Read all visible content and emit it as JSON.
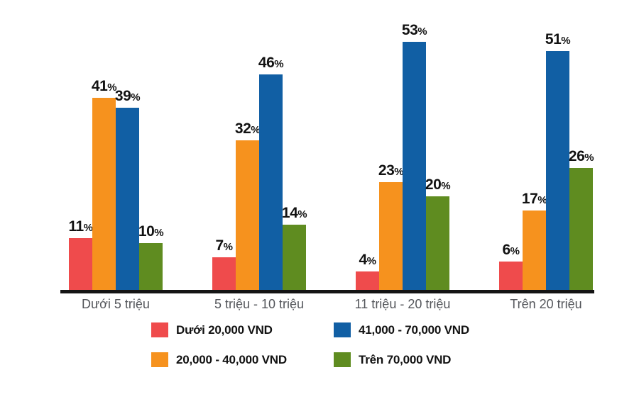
{
  "chart_data": {
    "type": "bar",
    "title": "",
    "xlabel": "",
    "ylabel": "",
    "categories": [
      "Dưới 5 triệu",
      "5 triệu - 10 triệu",
      "11 triệu - 20 triệu",
      "Trên 20 triệu"
    ],
    "series": [
      {
        "name": "Dưới 20,000 VND",
        "color": "#ef4b4c",
        "values": [
          11,
          7,
          4,
          6
        ]
      },
      {
        "name": "20,000 - 40,000 VND",
        "color": "#f6921e",
        "values": [
          41,
          32,
          23,
          17
        ]
      },
      {
        "name": "41,000 - 70,000 VND",
        "color": "#115fa4",
        "values": [
          39,
          46,
          53,
          51
        ]
      },
      {
        "name": "Trên 70,000 VND",
        "color": "#5f8c20",
        "values": [
          10,
          14,
          20,
          26
        ]
      }
    ],
    "value_suffix": "%",
    "value_labels_shown": true,
    "ylim": [
      0,
      57
    ],
    "grid": false,
    "y_axis_shown": false,
    "legend_position": "bottom-center",
    "legend_columns": 2
  },
  "styles": {
    "background": "#ffffff",
    "axis_color": "#141414",
    "value_label_color": "#121212",
    "category_label_color": "#54565b",
    "legend_text_color": "#121212"
  }
}
